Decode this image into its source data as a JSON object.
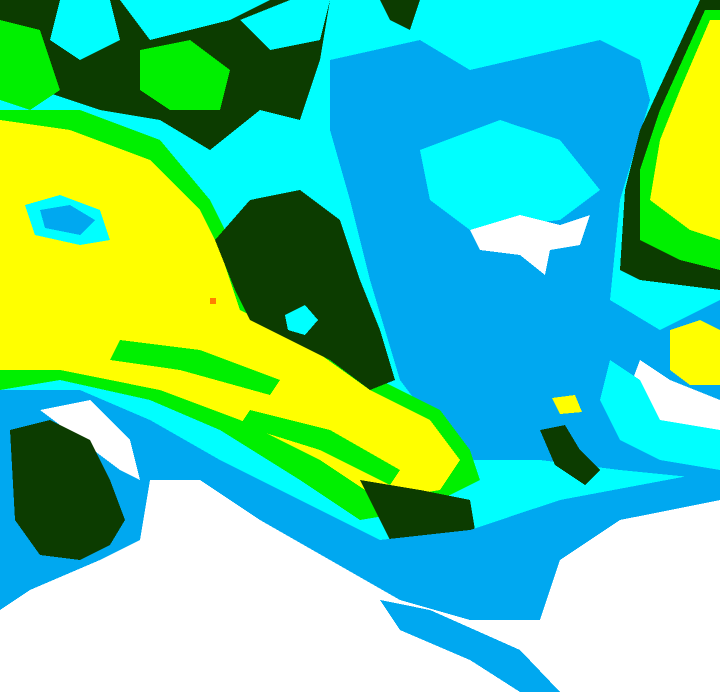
{
  "palette": {
    "background": "#00ffff",
    "cyan": "#00ffff",
    "blue": "#00a8f0",
    "white": "#ffffff",
    "dark_green": "#0c3c00",
    "green": "#00f000",
    "yellow": "#ffff00",
    "orange": "#ff8000"
  }
}
